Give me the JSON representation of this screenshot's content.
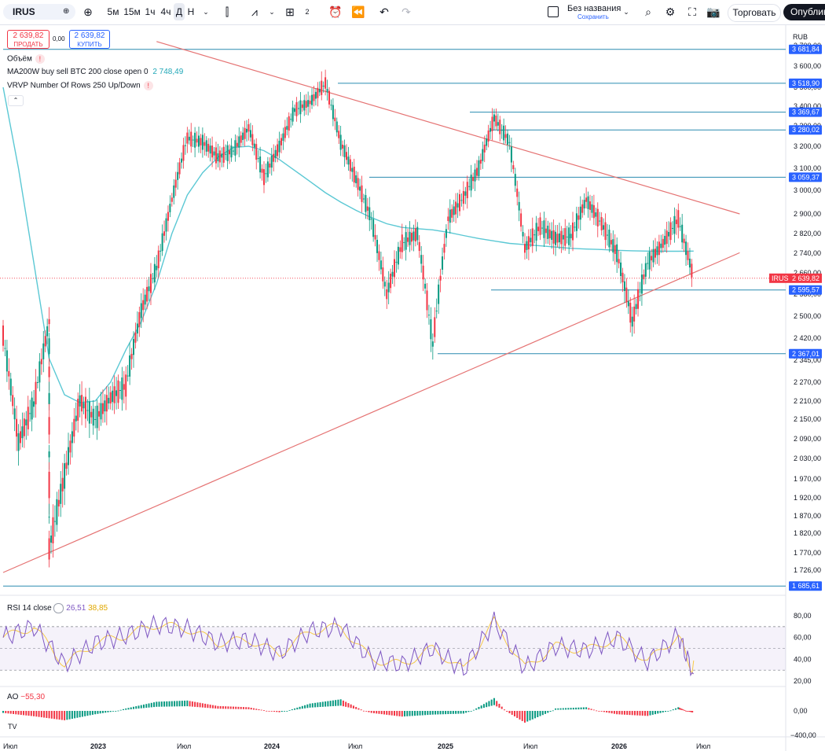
{
  "toolbar": {
    "symbol": "IRUS",
    "intervals": [
      "5м",
      "15м",
      "1ч",
      "4ч",
      "Д",
      "Н"
    ],
    "active_interval": "Д",
    "indicator_count": "2",
    "layout_name": "Без названия",
    "layout_save": "Сохранить",
    "trade_label": "Торговать",
    "publish_label": "Опубликовать"
  },
  "trade_panel": {
    "sell_price": "2 639,82",
    "sell_label": "ПРОДАТЬ",
    "spread": "0,00",
    "buy_price": "2 639,82",
    "buy_label": "КУПИТЬ"
  },
  "legend": {
    "volume": "Объём",
    "ma_label": "MA200W buy sell BTC 200 close open 0",
    "ma_value": "2 748,49",
    "vrvp_label": "VRVP Number Of Rows 250 Up/Down",
    "rsi_label": "RSI 14 close",
    "rsi_value": "26,51",
    "rsi_ma_value": "38,85",
    "ao_label": "AO",
    "ao_value": "−55,30"
  },
  "colors": {
    "up": "#089981",
    "down": "#f23645",
    "ma": "#5bc8d4",
    "trend": "#e57373",
    "hline": "#2a8cb0",
    "rsi": "#7e57c2",
    "rsi_ma": "#f7c948",
    "price_tag": "#f23645",
    "level_tag": "#2962ff"
  },
  "chart_data": [
    {
      "type": "line",
      "symbol": "IRUS",
      "currency": "RUB",
      "last_price": 2639.82,
      "last_price_label": "2 639,82",
      "ylim": [
        1690,
        3720
      ],
      "y_ticks": [
        "3 700,00",
        "3 600,00",
        "3 500,00",
        "3 400,00",
        "3 300,00",
        "3 200,00",
        "3 100,00",
        "3 000,00",
        "2 900,00",
        "2 820,00",
        "2 740,00",
        "2 660,00",
        "2 580,00",
        "2 500,00",
        "2 420,00",
        "2 345,00",
        "2 270,00",
        "2 210,00",
        "2 150,00",
        "2 090,00",
        "2 030,00",
        "1 970,00",
        "1 920,00",
        "1 870,00",
        "1 820,00",
        "1 770,00",
        "1 726,00"
      ],
      "x_ticks": [
        "Июл",
        "2023",
        "Июл",
        "2024",
        "Июл",
        "2025",
        "Июл",
        "2026",
        "Июл"
      ],
      "price_series": {
        "x": [
          "2022-06",
          "2022-07",
          "2022-08",
          "2022-09",
          "2022-09",
          "2022-10",
          "2022-11",
          "2022-12",
          "2023-01",
          "2023-02",
          "2023-03",
          "2023-04",
          "2023-05",
          "2023-06",
          "2023-07",
          "2023-08",
          "2023-09",
          "2023-10",
          "2023-11",
          "2023-12",
          "2024-01",
          "2024-02",
          "2024-03",
          "2024-04",
          "2024-05",
          "2024-06",
          "2024-07",
          "2024-08",
          "2024-09",
          "2024-10",
          "2024-11",
          "2024-12",
          "2025-01",
          "2025-02",
          "2025-03",
          "2025-04",
          "2025-05",
          "2025-06",
          "2025-07",
          "2025-08",
          "2025-09",
          "2025-10",
          "2025-11",
          "2025-12",
          "2026-01",
          "2026-02",
          "2026-03"
        ],
        "y": [
          2430,
          2080,
          2200,
          2480,
          1780,
          1980,
          2210,
          2150,
          2220,
          2260,
          2520,
          2680,
          2960,
          3240,
          3220,
          3150,
          3180,
          3290,
          3060,
          3200,
          3380,
          3420,
          3520,
          3220,
          3050,
          2880,
          2580,
          2780,
          2820,
          2400,
          2880,
          2970,
          3100,
          3340,
          3220,
          2760,
          2850,
          2800,
          2810,
          2960,
          2860,
          2740,
          2480,
          2700,
          2780,
          2880,
          2640
        ]
      },
      "ma_series": {
        "name": "MA200W",
        "x": [
          "2022-06",
          "2022-07",
          "2022-08",
          "2022-09",
          "2022-10",
          "2022-11",
          "2022-12",
          "2023-01",
          "2023-02",
          "2023-03",
          "2023-04",
          "2023-05",
          "2023-06",
          "2023-07",
          "2023-08",
          "2023-09",
          "2023-10",
          "2023-11",
          "2023-12",
          "2024-01",
          "2024-02",
          "2024-03",
          "2024-04",
          "2024-05",
          "2024-06",
          "2024-07",
          "2024-08",
          "2024-09",
          "2024-10",
          "2024-11",
          "2024-12",
          "2025-01",
          "2025-02",
          "2025-03",
          "2025-04",
          "2025-05",
          "2025-06",
          "2025-07",
          "2025-08",
          "2025-09",
          "2025-10",
          "2025-11",
          "2025-12",
          "2026-01",
          "2026-02",
          "2026-03"
        ],
        "y": [
          3500,
          3100,
          2700,
          2350,
          2230,
          2205,
          2210,
          2270,
          2380,
          2480,
          2620,
          2820,
          2980,
          3080,
          3150,
          3195,
          3200,
          3180,
          3140,
          3090,
          3040,
          2990,
          2950,
          2915,
          2885,
          2860,
          2845,
          2840,
          2835,
          2825,
          2812,
          2800,
          2790,
          2780,
          2775,
          2770,
          2765,
          2760,
          2757,
          2755,
          2752,
          2750,
          2748.49,
          2748,
          2748,
          2748.49
        ]
      },
      "trend_lines": [
        {
          "from_date": "2022-06",
          "from_value": 1720,
          "to_date": "2026-06",
          "to_value": 2742
        },
        {
          "from_date": "2023-04",
          "from_value": 3720,
          "to_date": "2026-06",
          "to_value": 2900
        }
      ],
      "levels": [
        3681.84,
        3518.9,
        3369.67,
        3280.02,
        3059.37,
        2595.57,
        2367.01,
        1685.61
      ],
      "level_labels": [
        "3 681,84",
        "3 518,90",
        "3 369,67",
        "3 280,02",
        "3 059,37",
        "2 595,57",
        "2 367,01",
        "1 685,61"
      ]
    },
    {
      "type": "line",
      "name": "RSI 14 close",
      "ylim": [
        20,
        88
      ],
      "y_ticks": [
        "80,00",
        "60,00",
        "40,00",
        "20,00"
      ],
      "band": [
        30,
        70
      ],
      "last_value": 26.51,
      "ma_last_value": 38.85,
      "x": [
        "2022-06",
        "2022-08",
        "2022-10",
        "2022-12",
        "2023-02",
        "2023-04",
        "2023-06",
        "2023-08",
        "2023-10",
        "2023-12",
        "2024-02",
        "2024-04",
        "2024-06",
        "2024-08",
        "2024-10",
        "2024-12",
        "2025-02",
        "2025-04",
        "2025-06",
        "2025-08",
        "2025-10",
        "2025-12",
        "2026-02",
        "2026-03"
      ],
      "y": [
        60,
        70,
        35,
        55,
        62,
        72,
        68,
        55,
        58,
        45,
        66,
        70,
        40,
        35,
        50,
        30,
        75,
        32,
        52,
        48,
        60,
        38,
        62,
        26.51
      ]
    },
    {
      "type": "bar",
      "name": "AO",
      "y_ticks": [
        "0,00",
        "−400,00"
      ],
      "ylim": [
        -420,
        220
      ],
      "last_value": -55.3,
      "x": [
        "2022-06",
        "2022-08",
        "2022-10",
        "2022-12",
        "2023-02",
        "2023-04",
        "2023-06",
        "2023-08",
        "2023-10",
        "2023-12",
        "2024-02",
        "2024-04",
        "2024-06",
        "2024-08",
        "2024-10",
        "2024-12",
        "2025-02",
        "2025-04",
        "2025-06",
        "2025-08",
        "2025-10",
        "2025-12",
        "2026-02",
        "2026-03"
      ],
      "y": [
        -60,
        -160,
        -280,
        -100,
        40,
        150,
        170,
        80,
        60,
        -40,
        120,
        190,
        -60,
        -170,
        -110,
        -80,
        210,
        -350,
        40,
        60,
        -100,
        -150,
        60,
        -55.3
      ]
    }
  ]
}
